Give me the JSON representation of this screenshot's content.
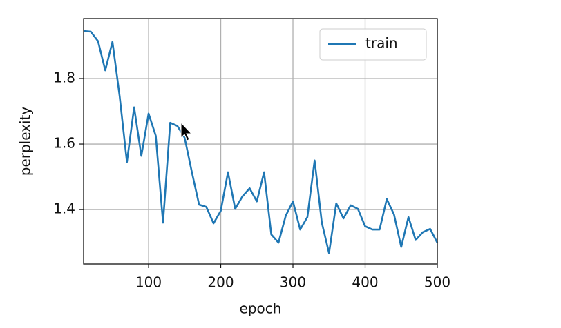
{
  "chart_data": {
    "type": "line",
    "xlabel": "epoch",
    "ylabel": "perplexity",
    "x": [
      10,
      20,
      30,
      40,
      50,
      60,
      70,
      80,
      90,
      100,
      110,
      120,
      130,
      140,
      150,
      160,
      170,
      180,
      190,
      200,
      210,
      220,
      230,
      240,
      250,
      260,
      270,
      280,
      290,
      300,
      310,
      320,
      330,
      340,
      350,
      360,
      370,
      380,
      390,
      400,
      410,
      420,
      430,
      440,
      450,
      460,
      470,
      480,
      490,
      500
    ],
    "series": [
      {
        "name": "train",
        "color": "#1f77b4",
        "values": [
          1.945,
          1.943,
          1.914,
          1.825,
          1.912,
          1.745,
          1.545,
          1.712,
          1.564,
          1.693,
          1.625,
          1.36,
          1.665,
          1.655,
          1.619,
          1.514,
          1.415,
          1.408,
          1.358,
          1.396,
          1.514,
          1.402,
          1.44,
          1.465,
          1.425,
          1.514,
          1.324,
          1.299,
          1.381,
          1.425,
          1.339,
          1.377,
          1.55,
          1.36,
          1.267,
          1.419,
          1.373,
          1.413,
          1.402,
          1.349,
          1.339,
          1.339,
          1.432,
          1.385,
          1.286,
          1.377,
          1.307,
          1.331,
          1.341,
          1.299
        ]
      }
    ],
    "xlim": [
      10,
      500
    ],
    "ylim": [
      1.234,
      1.983
    ],
    "xticks": [
      100,
      200,
      300,
      400,
      500
    ],
    "yticks": [
      1.4,
      1.6,
      1.8
    ],
    "grid": true,
    "legend": "upper right"
  }
}
